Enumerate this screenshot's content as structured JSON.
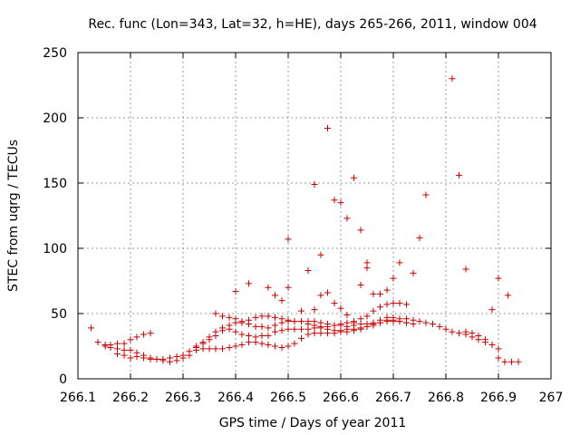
{
  "chart_data": {
    "type": "scatter",
    "title": "Rec. func (Lon=343, Lat=32, h=HE), days 265-266, 2011, window 004",
    "xlabel": "GPS time / Days of year 2011",
    "ylabel": "STEC from uqrg / TECUs",
    "xlim": [
      266.1,
      267.0
    ],
    "ylim": [
      0,
      250
    ],
    "x_ticks": [
      266.1,
      266.2,
      266.3,
      266.4,
      266.5,
      266.6,
      266.7,
      266.8,
      266.9,
      267.0
    ],
    "x_tick_labels": [
      "266.1",
      "266.2",
      "266.3",
      "266.4",
      "266.5",
      "266.6",
      "266.7",
      "266.8",
      "266.9",
      "267"
    ],
    "y_ticks": [
      0,
      50,
      100,
      150,
      200,
      250
    ],
    "y_tick_labels": [
      "0",
      "50",
      "100",
      "150",
      "200",
      "250"
    ],
    "grid": true,
    "marker": "+",
    "color": "#cc0000",
    "series": [
      {
        "name": "STEC",
        "x": [
          266.125,
          266.138,
          266.152,
          266.162,
          266.175,
          266.188,
          266.2,
          266.212,
          266.225,
          266.238,
          266.25,
          266.262,
          266.275,
          266.288,
          266.3,
          266.312,
          266.325,
          266.338,
          266.35,
          266.362,
          266.375,
          266.388,
          266.4,
          266.412,
          266.425,
          266.438,
          266.45,
          266.462,
          266.475,
          266.488,
          266.5,
          266.512,
          266.525,
          266.538,
          266.55,
          266.562,
          266.575,
          266.588,
          266.6,
          266.612,
          266.625,
          266.638,
          266.65,
          266.662,
          266.675,
          266.688,
          266.7,
          266.712,
          266.725,
          266.738,
          266.75,
          266.762,
          266.775,
          266.788,
          266.8,
          266.812,
          266.825,
          266.838,
          266.85,
          266.862,
          266.875,
          266.888,
          266.9,
          266.912,
          266.925,
          266.938,
          266.152,
          266.162,
          266.175,
          266.188,
          266.2,
          266.212,
          266.225,
          266.238,
          266.25,
          266.262,
          266.275,
          266.288,
          266.3,
          266.312,
          266.325,
          266.338,
          266.35,
          266.362,
          266.375,
          266.388,
          266.4,
          266.412,
          266.425,
          266.438,
          266.45,
          266.462,
          266.475,
          266.488,
          266.5,
          266.512,
          266.525,
          266.538,
          266.55,
          266.562,
          266.575,
          266.588,
          266.6,
          266.612,
          266.625,
          266.638,
          266.65,
          266.662,
          266.675,
          266.688,
          266.7,
          266.712,
          266.725,
          266.175,
          266.188,
          266.2,
          266.212,
          266.225,
          266.238,
          266.325,
          266.338,
          266.35,
          266.362,
          266.375,
          266.388,
          266.4,
          266.412,
          266.425,
          266.438,
          266.45,
          266.462,
          266.475,
          266.488,
          266.5,
          266.512,
          266.525,
          266.538,
          266.55,
          266.562,
          266.575,
          266.588,
          266.6,
          266.612,
          266.625,
          266.638,
          266.65,
          266.662,
          266.675,
          266.688,
          266.7,
          266.712,
          266.725,
          266.838,
          266.85,
          266.862,
          266.875,
          266.888,
          266.9,
          266.362,
          266.375,
          266.388,
          266.4,
          266.412,
          266.425,
          266.438,
          266.45,
          266.462,
          266.475,
          266.488,
          266.5,
          266.512,
          266.525,
          266.538,
          266.55,
          266.562,
          266.575,
          266.588,
          266.6,
          266.612,
          266.625,
          266.638,
          266.65,
          266.662,
          266.675,
          266.688,
          266.7,
          266.712,
          266.725,
          266.738,
          266.4,
          266.425,
          266.462,
          266.475,
          266.488,
          266.5,
          266.525,
          266.55,
          266.562,
          266.575,
          266.588,
          266.6,
          266.612,
          266.625,
          266.638,
          266.65,
          266.662,
          266.675,
          266.688,
          266.7,
          266.5,
          266.538,
          266.55,
          266.562,
          266.575,
          266.588,
          266.6,
          266.612,
          266.625,
          266.638,
          266.65,
          266.712,
          266.738,
          266.75,
          266.762,
          266.812,
          266.825,
          266.838,
          266.888,
          266.9,
          266.918
        ],
        "y": [
          39,
          28,
          25,
          24,
          23,
          22,
          22,
          20,
          18,
          16,
          15,
          14,
          13,
          14,
          16,
          18,
          22,
          23,
          23,
          23,
          23,
          24,
          25,
          26,
          28,
          28,
          27,
          26,
          25,
          24,
          25,
          27,
          31,
          34,
          35,
          35,
          35,
          35,
          36,
          36,
          37,
          38,
          40,
          42,
          45,
          47,
          47,
          46,
          46,
          45,
          44,
          43,
          42,
          40,
          38,
          36,
          35,
          34,
          32,
          30,
          28,
          26,
          23,
          13,
          13,
          13,
          26,
          26,
          27,
          27,
          30,
          32,
          34,
          35,
          15,
          15,
          16,
          17,
          18,
          21,
          24,
          27,
          30,
          33,
          37,
          38,
          36,
          34,
          33,
          32,
          33,
          33,
          36,
          37,
          38,
          38,
          38,
          38,
          39,
          39,
          40,
          41,
          42,
          43,
          44,
          46,
          48,
          52,
          55,
          57,
          58,
          58,
          57,
          19,
          18,
          16,
          17,
          16,
          15,
          25,
          28,
          32,
          36,
          39,
          41,
          43,
          44,
          45,
          47,
          48,
          48,
          47,
          46,
          45,
          44,
          44,
          42,
          41,
          40,
          38,
          37,
          37,
          38,
          38,
          39,
          40,
          41,
          43,
          45,
          45,
          44,
          43,
          36,
          35,
          33,
          30,
          26,
          16,
          50,
          48,
          47,
          46,
          43,
          42,
          40,
          40,
          39,
          41,
          43,
          44,
          44,
          44,
          44,
          44,
          43,
          42,
          41,
          41,
          40,
          41,
          42,
          42,
          43,
          43,
          44,
          44,
          44,
          43,
          42,
          67,
          73,
          70,
          64,
          60,
          70,
          52,
          53,
          64,
          66,
          58,
          54,
          49,
          43,
          72,
          85,
          65,
          65,
          68,
          77,
          107,
          83,
          149,
          95,
          192,
          137,
          135,
          123,
          154,
          114,
          89,
          89,
          81,
          108,
          141,
          230,
          156,
          84,
          53,
          77,
          64
        ]
      }
    ]
  }
}
